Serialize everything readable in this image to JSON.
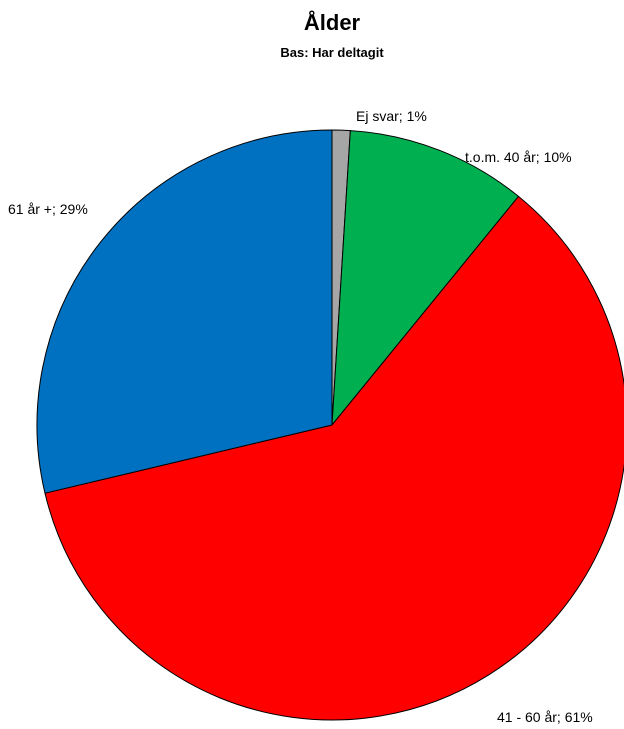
{
  "chart_data": {
    "type": "pie",
    "title": "Ålder",
    "subtitle": "Bas: Har deltagit",
    "slices": [
      {
        "label": "Ej svar",
        "value": 1,
        "display": "Ej svar; 1%",
        "color": "#a6a6a6"
      },
      {
        "label": "t.o.m. 40 år",
        "value": 10,
        "display": "t.o.m. 40 år; 10%",
        "color": "#00b050"
      },
      {
        "label": "41 - 60 år",
        "value": 61,
        "display": "41 - 60 år; 61%",
        "color": "#ff0000"
      },
      {
        "label": "61 år +",
        "value": 29,
        "display": "61 år +; 29%",
        "color": "#0070c0"
      }
    ]
  }
}
